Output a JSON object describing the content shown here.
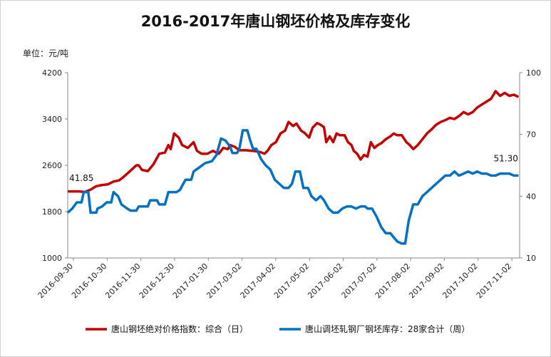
{
  "chart_data": {
    "type": "line",
    "title": "2016-2017年唐山钢坯价格及库存变化",
    "unit_label": "单位：元/吨",
    "x_tick_labels": [
      "2016-09-30",
      "2016-10-30",
      "2016-11-30",
      "2016-12-30",
      "2017-01-30",
      "2017-03-02",
      "2017-04-02",
      "2017-05-02",
      "2017-06-02",
      "2017-07-02",
      "2017-08-02",
      "2017-09-02",
      "2017-10-02",
      "2017-11-02"
    ],
    "x_range": [
      0,
      395
    ],
    "y_left": {
      "ticks": [
        1000,
        1800,
        2600,
        3400,
        4200
      ],
      "range": [
        1000,
        4200
      ]
    },
    "y_right": {
      "ticks": [
        10,
        40,
        70,
        100
      ],
      "range": [
        10,
        100
      ]
    },
    "grid": false,
    "legend_position": "bottom",
    "annotations": [
      {
        "text": "41.85",
        "series": 1,
        "x": 12,
        "y": 41.85
      },
      {
        "text": "51.30",
        "series": 1,
        "x": 383,
        "y": 51.3
      }
    ],
    "series": [
      {
        "name": "唐山钢坯绝对价格指数：综合（日）",
        "axis": "left",
        "color": "#c00000",
        "points": [
          [
            0,
            2150
          ],
          [
            10,
            2150
          ],
          [
            15,
            2140
          ],
          [
            20,
            2180
          ],
          [
            25,
            2240
          ],
          [
            30,
            2260
          ],
          [
            35,
            2270
          ],
          [
            40,
            2320
          ],
          [
            45,
            2340
          ],
          [
            50,
            2420
          ],
          [
            55,
            2510
          ],
          [
            60,
            2600
          ],
          [
            62,
            2600
          ],
          [
            65,
            2520
          ],
          [
            70,
            2500
          ],
          [
            75,
            2620
          ],
          [
            80,
            2800
          ],
          [
            85,
            2820
          ],
          [
            88,
            2950
          ],
          [
            90,
            2880
          ],
          [
            93,
            3150
          ],
          [
            97,
            3080
          ],
          [
            100,
            2950
          ],
          [
            105,
            2900
          ],
          [
            110,
            3000
          ],
          [
            113,
            2850
          ],
          [
            117,
            2800
          ],
          [
            122,
            2800
          ],
          [
            127,
            2850
          ],
          [
            132,
            2800
          ],
          [
            136,
            2900
          ],
          [
            140,
            2880
          ],
          [
            142,
            2950
          ],
          [
            146,
            2920
          ],
          [
            150,
            2860
          ],
          [
            156,
            2860
          ],
          [
            162,
            2850
          ],
          [
            168,
            2830
          ],
          [
            172,
            2800
          ],
          [
            175,
            2860
          ],
          [
            178,
            2950
          ],
          [
            182,
            3000
          ],
          [
            186,
            3150
          ],
          [
            190,
            3200
          ],
          [
            193,
            3350
          ],
          [
            197,
            3280
          ],
          [
            200,
            3320
          ],
          [
            204,
            3200
          ],
          [
            207,
            3160
          ],
          [
            211,
            3080
          ],
          [
            214,
            3250
          ],
          [
            218,
            3330
          ],
          [
            221,
            3300
          ],
          [
            224,
            3260
          ],
          [
            226,
            3000
          ],
          [
            229,
            3100
          ],
          [
            232,
            3000
          ],
          [
            235,
            3150
          ],
          [
            238,
            3120
          ],
          [
            242,
            3120
          ],
          [
            245,
            3000
          ],
          [
            248,
            2950
          ],
          [
            250,
            2850
          ],
          [
            253,
            2800
          ],
          [
            256,
            2700
          ],
          [
            259,
            2780
          ],
          [
            262,
            2750
          ],
          [
            265,
            3000
          ],
          [
            268,
            2900
          ],
          [
            271,
            2950
          ],
          [
            274,
            2980
          ],
          [
            278,
            3050
          ],
          [
            282,
            3100
          ],
          [
            285,
            3150
          ],
          [
            288,
            3120
          ],
          [
            292,
            3120
          ],
          [
            296,
            3000
          ],
          [
            299,
            2950
          ],
          [
            302,
            2880
          ],
          [
            306,
            2950
          ],
          [
            310,
            3050
          ],
          [
            314,
            3150
          ],
          [
            318,
            3220
          ],
          [
            322,
            3300
          ],
          [
            326,
            3350
          ],
          [
            330,
            3380
          ],
          [
            334,
            3420
          ],
          [
            338,
            3400
          ],
          [
            342,
            3450
          ],
          [
            346,
            3520
          ],
          [
            350,
            3480
          ],
          [
            354,
            3520
          ],
          [
            358,
            3600
          ],
          [
            362,
            3650
          ],
          [
            366,
            3700
          ],
          [
            370,
            3750
          ],
          [
            374,
            3880
          ],
          [
            378,
            3800
          ],
          [
            382,
            3850
          ],
          [
            386,
            3800
          ],
          [
            390,
            3820
          ],
          [
            394,
            3780
          ]
        ]
      },
      {
        "name": "唐山调坯轧钢厂钢坯库存：28家合计（周）",
        "axis": "right",
        "color": "#0070c0",
        "points": [
          [
            0,
            32
          ],
          [
            4,
            34
          ],
          [
            8,
            37
          ],
          [
            12,
            37
          ],
          [
            14,
            42
          ],
          [
            18,
            42
          ],
          [
            20,
            32
          ],
          [
            25,
            32
          ],
          [
            26,
            34
          ],
          [
            30,
            35
          ],
          [
            34,
            37
          ],
          [
            38,
            37
          ],
          [
            40,
            42
          ],
          [
            44,
            40
          ],
          [
            47,
            36
          ],
          [
            52,
            34
          ],
          [
            55,
            33
          ],
          [
            60,
            33
          ],
          [
            62,
            35
          ],
          [
            66,
            35
          ],
          [
            70,
            35
          ],
          [
            72,
            38
          ],
          [
            78,
            38
          ],
          [
            80,
            36
          ],
          [
            85,
            36
          ],
          [
            88,
            42
          ],
          [
            95,
            42
          ],
          [
            98,
            43
          ],
          [
            103,
            48
          ],
          [
            108,
            48
          ],
          [
            110,
            52
          ],
          [
            115,
            54
          ],
          [
            120,
            56
          ],
          [
            126,
            57
          ],
          [
            130,
            60
          ],
          [
            134,
            68
          ],
          [
            138,
            67
          ],
          [
            142,
            64
          ],
          [
            144,
            61
          ],
          [
            148,
            61
          ],
          [
            150,
            63
          ],
          [
            153,
            72
          ],
          [
            157,
            72
          ],
          [
            159,
            68
          ],
          [
            162,
            63
          ],
          [
            165,
            63
          ],
          [
            169,
            58
          ],
          [
            173,
            55
          ],
          [
            177,
            53
          ],
          [
            181,
            48
          ],
          [
            185,
            46
          ],
          [
            189,
            44
          ],
          [
            193,
            44
          ],
          [
            196,
            46
          ],
          [
            199,
            52
          ],
          [
            203,
            52
          ],
          [
            206,
            44
          ],
          [
            210,
            44
          ],
          [
            213,
            40
          ],
          [
            217,
            38
          ],
          [
            221,
            40
          ],
          [
            224,
            38
          ],
          [
            228,
            34
          ],
          [
            232,
            32
          ],
          [
            236,
            32
          ],
          [
            240,
            34
          ],
          [
            244,
            35
          ],
          [
            248,
            35
          ],
          [
            252,
            34
          ],
          [
            256,
            35
          ],
          [
            260,
            35
          ],
          [
            262,
            34
          ],
          [
            266,
            34
          ],
          [
            270,
            30
          ],
          [
            274,
            25
          ],
          [
            278,
            22
          ],
          [
            282,
            22
          ],
          [
            285,
            20
          ],
          [
            288,
            18
          ],
          [
            292,
            17
          ],
          [
            295,
            17
          ],
          [
            298,
            28
          ],
          [
            302,
            36
          ],
          [
            306,
            36
          ],
          [
            310,
            40
          ],
          [
            314,
            42
          ],
          [
            318,
            44
          ],
          [
            322,
            46
          ],
          [
            326,
            48
          ],
          [
            330,
            50
          ],
          [
            334,
            50
          ],
          [
            338,
            52
          ],
          [
            342,
            50
          ],
          [
            346,
            51
          ],
          [
            350,
            52
          ],
          [
            354,
            51
          ],
          [
            358,
            52
          ],
          [
            362,
            51
          ],
          [
            366,
            51
          ],
          [
            370,
            50
          ],
          [
            374,
            50
          ],
          [
            378,
            51
          ],
          [
            382,
            51
          ],
          [
            386,
            51
          ],
          [
            390,
            50
          ],
          [
            394,
            50
          ]
        ]
      }
    ]
  }
}
